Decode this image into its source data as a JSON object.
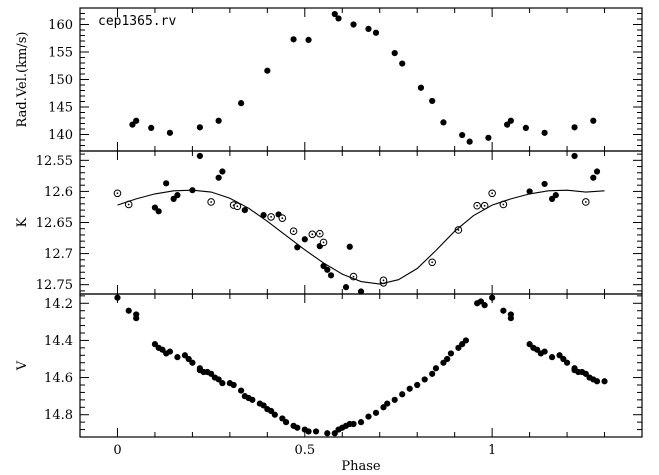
{
  "chart_data": [
    {
      "type": "scatter",
      "title": "cep1365.rv",
      "ylabel": "Rad.Vel.(km/s)",
      "xlim": [
        -0.1,
        1.4
      ],
      "ylim": [
        137,
        163
      ],
      "y_inverted": false,
      "x_ticks": [
        0,
        0.5,
        1
      ],
      "y_ticks": [
        "140",
        "145",
        "150",
        "155",
        "160"
      ],
      "series": [
        {
          "marker": "filled",
          "points": [
            [
              0.04,
              141.8
            ],
            [
              0.05,
              142.5
            ],
            [
              0.09,
              141.2
            ],
            [
              0.14,
              140.3
            ],
            [
              0.22,
              141.3
            ],
            [
              0.27,
              142.5
            ],
            [
              0.33,
              145.7
            ],
            [
              0.4,
              151.6
            ],
            [
              0.47,
              157.3
            ],
            [
              0.51,
              157.2
            ],
            [
              0.58,
              161.9
            ],
            [
              0.59,
              161.1
            ],
            [
              0.63,
              160.0
            ],
            [
              0.67,
              159.2
            ],
            [
              0.69,
              158.5
            ],
            [
              0.74,
              154.8
            ],
            [
              0.76,
              152.9
            ],
            [
              0.81,
              148.5
            ],
            [
              0.84,
              146.1
            ],
            [
              0.87,
              142.2
            ],
            [
              0.92,
              139.9
            ],
            [
              0.94,
              138.7
            ],
            [
              0.99,
              139.4
            ],
            [
              1.04,
              141.8
            ],
            [
              1.05,
              142.5
            ],
            [
              1.09,
              141.2
            ],
            [
              1.14,
              140.3
            ],
            [
              1.22,
              141.3
            ],
            [
              1.27,
              142.5
            ]
          ]
        }
      ]
    },
    {
      "type": "scatter",
      "ylabel": "K",
      "xlim": [
        -0.1,
        1.4
      ],
      "ylim": [
        12.535,
        12.765
      ],
      "y_inverted": true,
      "x_ticks": [
        0,
        0.5,
        1
      ],
      "y_ticks": [
        "12.55",
        "12.6",
        "12.65",
        "12.7",
        "12.75"
      ],
      "series": [
        {
          "marker": "filled",
          "points": [
            [
              0.1,
              12.626
            ],
            [
              0.11,
              12.632
            ],
            [
              0.13,
              12.587
            ],
            [
              0.15,
              12.612
            ],
            [
              0.16,
              12.606
            ],
            [
              0.2,
              12.598
            ],
            [
              0.22,
              12.543
            ],
            [
              0.27,
              12.578
            ],
            [
              0.28,
              12.568
            ],
            [
              0.32,
              12.625
            ],
            [
              0.34,
              12.63
            ],
            [
              0.39,
              12.638
            ],
            [
              0.43,
              12.637
            ],
            [
              0.48,
              12.69
            ],
            [
              0.5,
              12.677
            ],
            [
              0.54,
              12.688
            ],
            [
              0.55,
              12.72
            ],
            [
              0.56,
              12.726
            ],
            [
              0.57,
              12.735
            ],
            [
              0.61,
              12.754
            ],
            [
              0.62,
              12.689
            ],
            [
              0.65,
              12.761
            ],
            [
              1.1,
              12.6
            ],
            [
              1.14,
              12.588
            ],
            [
              1.16,
              12.612
            ],
            [
              1.17,
              12.606
            ],
            [
              1.22,
              12.543
            ],
            [
              1.27,
              12.578
            ],
            [
              1.28,
              12.568
            ]
          ]
        },
        {
          "marker": "open",
          "points": [
            [
              0.0,
              12.603
            ],
            [
              0.03,
              12.621
            ],
            [
              0.25,
              12.617
            ],
            [
              0.31,
              12.622
            ],
            [
              0.32,
              12.624
            ],
            [
              0.41,
              12.641
            ],
            [
              0.44,
              12.643
            ],
            [
              0.47,
              12.664
            ],
            [
              0.52,
              12.669
            ],
            [
              0.54,
              12.668
            ],
            [
              0.55,
              12.682
            ],
            [
              0.63,
              12.737
            ],
            [
              0.71,
              12.747
            ],
            [
              0.71,
              12.743
            ],
            [
              0.84,
              12.714
            ],
            [
              0.91,
              12.662
            ],
            [
              0.96,
              12.623
            ],
            [
              0.98,
              12.623
            ],
            [
              1.0,
              12.603
            ],
            [
              1.03,
              12.621
            ],
            [
              1.25,
              12.617
            ]
          ]
        },
        {
          "type": "line",
          "points": [
            [
              0.0,
              12.622
            ],
            [
              0.05,
              12.612
            ],
            [
              0.1,
              12.604
            ],
            [
              0.15,
              12.599
            ],
            [
              0.2,
              12.598
            ],
            [
              0.25,
              12.601
            ],
            [
              0.3,
              12.611
            ],
            [
              0.35,
              12.627
            ],
            [
              0.4,
              12.648
            ],
            [
              0.45,
              12.671
            ],
            [
              0.5,
              12.694
            ],
            [
              0.55,
              12.715
            ],
            [
              0.6,
              12.733
            ],
            [
              0.65,
              12.745
            ],
            [
              0.7,
              12.749
            ],
            [
              0.75,
              12.742
            ],
            [
              0.8,
              12.724
            ],
            [
              0.85,
              12.695
            ],
            [
              0.9,
              12.664
            ],
            [
              0.95,
              12.639
            ],
            [
              1.0,
              12.622
            ],
            [
              1.05,
              12.612
            ],
            [
              1.1,
              12.604
            ],
            [
              1.15,
              12.599
            ],
            [
              1.2,
              12.598
            ],
            [
              1.25,
              12.601
            ],
            [
              1.3,
              12.599
            ]
          ]
        }
      ]
    },
    {
      "type": "scatter",
      "ylabel": "V",
      "xlabel": "Phase",
      "xlim": [
        -0.1,
        1.4
      ],
      "ylim": [
        14.15,
        14.92
      ],
      "y_inverted": true,
      "x_ticks": [
        "0",
        "0.5",
        "1"
      ],
      "y_ticks": [
        "14.2",
        "14.4",
        "14.6",
        "14.8"
      ],
      "series": [
        {
          "marker": "filled",
          "points": [
            [
              0.0,
              14.17
            ],
            [
              0.03,
              14.24
            ],
            [
              0.05,
              14.26
            ],
            [
              0.05,
              14.28
            ],
            [
              0.1,
              14.42
            ],
            [
              0.11,
              14.44
            ],
            [
              0.12,
              14.45
            ],
            [
              0.13,
              14.47
            ],
            [
              0.14,
              14.46
            ],
            [
              0.16,
              14.49
            ],
            [
              0.18,
              14.48
            ],
            [
              0.19,
              14.5
            ],
            [
              0.2,
              14.52
            ],
            [
              0.22,
              14.55
            ],
            [
              0.22,
              14.56
            ],
            [
              0.23,
              14.57
            ],
            [
              0.24,
              14.57
            ],
            [
              0.25,
              14.58
            ],
            [
              0.26,
              14.6
            ],
            [
              0.27,
              14.61
            ],
            [
              0.28,
              14.63
            ],
            [
              0.3,
              14.63
            ],
            [
              0.31,
              14.64
            ],
            [
              0.33,
              14.67
            ],
            [
              0.34,
              14.7
            ],
            [
              0.35,
              14.71
            ],
            [
              0.36,
              14.72
            ],
            [
              0.38,
              14.74
            ],
            [
              0.39,
              14.75
            ],
            [
              0.4,
              14.77
            ],
            [
              0.41,
              14.78
            ],
            [
              0.42,
              14.8
            ],
            [
              0.44,
              14.82
            ],
            [
              0.45,
              14.84
            ],
            [
              0.47,
              14.86
            ],
            [
              0.48,
              14.87
            ],
            [
              0.5,
              14.88
            ],
            [
              0.51,
              14.89
            ],
            [
              0.53,
              14.89
            ],
            [
              0.56,
              14.9
            ],
            [
              0.58,
              14.9
            ],
            [
              0.59,
              14.88
            ],
            [
              0.6,
              14.87
            ],
            [
              0.61,
              14.86
            ],
            [
              0.62,
              14.85
            ],
            [
              0.63,
              14.85
            ],
            [
              0.65,
              14.84
            ],
            [
              0.67,
              14.81
            ],
            [
              0.69,
              14.79
            ],
            [
              0.71,
              14.76
            ],
            [
              0.72,
              14.74
            ],
            [
              0.74,
              14.72
            ],
            [
              0.76,
              14.69
            ],
            [
              0.78,
              14.66
            ],
            [
              0.8,
              14.64
            ],
            [
              0.82,
              14.61
            ],
            [
              0.84,
              14.58
            ],
            [
              0.85,
              14.55
            ],
            [
              0.87,
              14.52
            ],
            [
              0.88,
              14.5
            ],
            [
              0.89,
              14.47
            ],
            [
              0.91,
              14.44
            ],
            [
              0.92,
              14.42
            ],
            [
              0.93,
              14.4
            ],
            [
              0.96,
              14.2
            ],
            [
              0.97,
              14.19
            ],
            [
              0.98,
              14.21
            ],
            [
              1.0,
              14.17
            ],
            [
              1.03,
              14.24
            ],
            [
              1.05,
              14.26
            ],
            [
              1.05,
              14.28
            ],
            [
              1.1,
              14.42
            ],
            [
              1.11,
              14.44
            ],
            [
              1.12,
              14.45
            ],
            [
              1.13,
              14.47
            ],
            [
              1.14,
              14.46
            ],
            [
              1.16,
              14.49
            ],
            [
              1.18,
              14.48
            ],
            [
              1.19,
              14.5
            ],
            [
              1.2,
              14.52
            ],
            [
              1.22,
              14.55
            ],
            [
              1.22,
              14.56
            ],
            [
              1.23,
              14.57
            ],
            [
              1.24,
              14.57
            ],
            [
              1.25,
              14.58
            ],
            [
              1.26,
              14.6
            ],
            [
              1.27,
              14.61
            ],
            [
              1.28,
              14.62
            ],
            [
              1.3,
              14.62
            ]
          ]
        }
      ]
    }
  ]
}
